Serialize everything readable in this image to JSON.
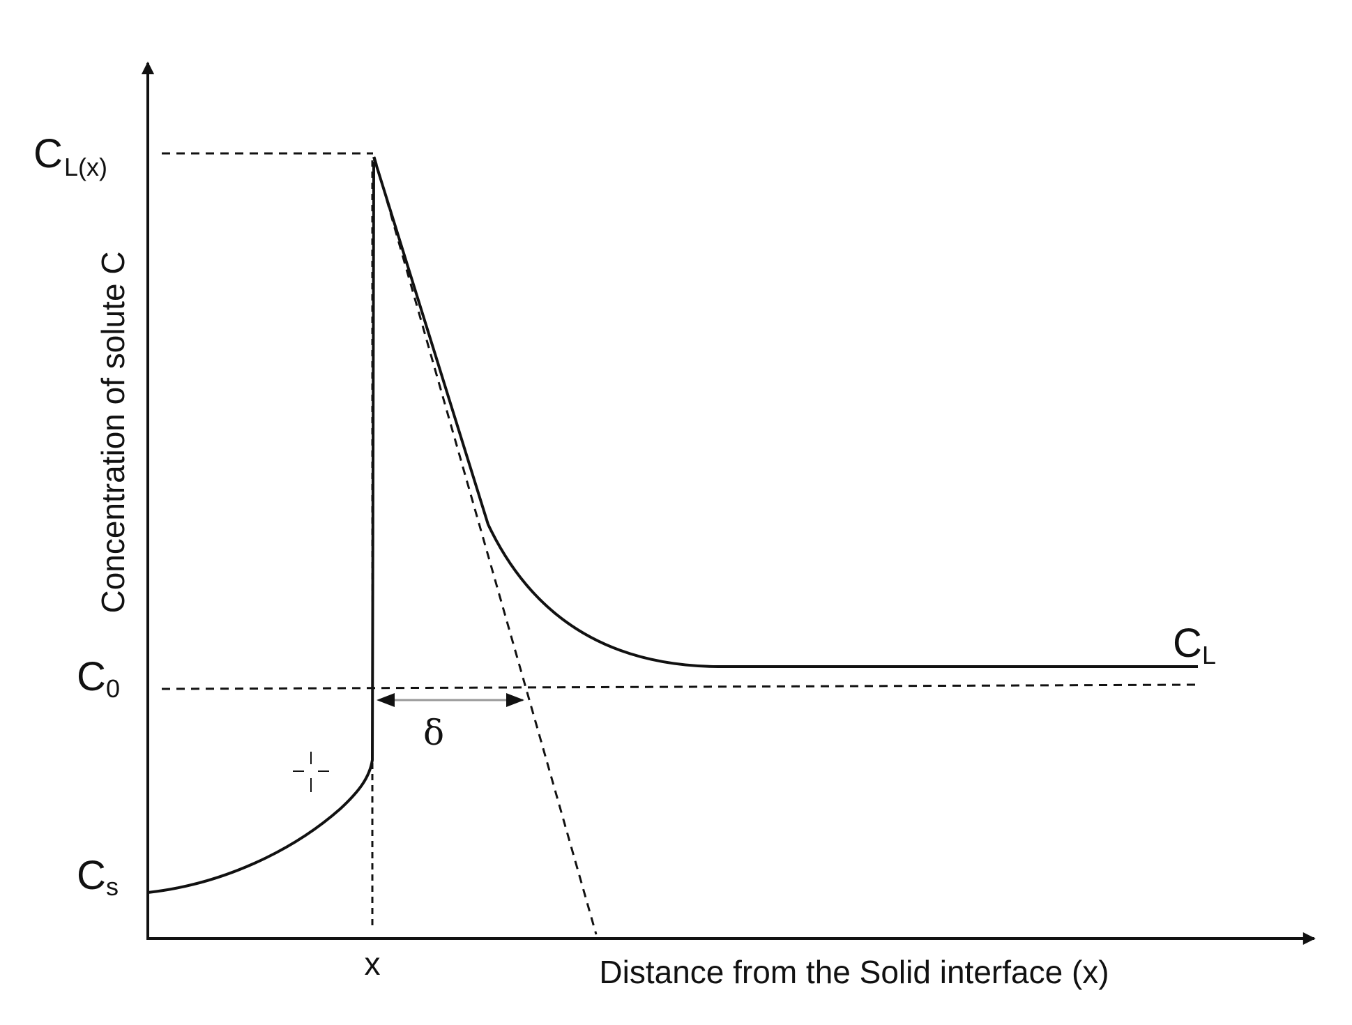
{
  "axes": {
    "y_label": "Concentration of solute C",
    "x_label": "Distance from the Solid interface (x)"
  },
  "labels": {
    "cl_x_main": "C",
    "cl_x_sub": "L(x)",
    "c0_main": "C",
    "c0_sub": "0",
    "cs_main": "C",
    "cs_sub": "s",
    "cl_main": "C",
    "cl_sub": "L",
    "x_tick": "x",
    "delta": "δ"
  },
  "colors": {
    "ink": "#111111",
    "delta_arrow": "#999999"
  }
}
